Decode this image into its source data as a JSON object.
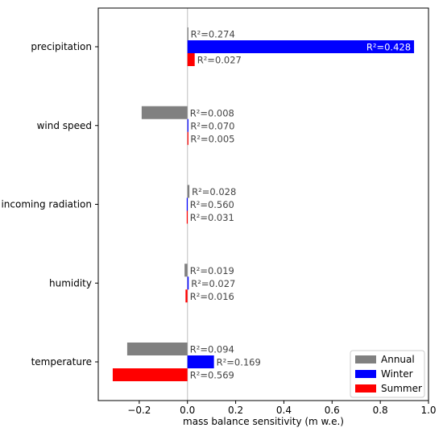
{
  "chart_data": {
    "type": "bar",
    "orientation": "horizontal",
    "categories": [
      "temperature",
      "humidity",
      "incoming radiation",
      "wind speed",
      "precipitation"
    ],
    "series": [
      {
        "name": "Annual",
        "color": "#808080",
        "values": [
          -0.25,
          -0.012,
          0.008,
          -0.19,
          0.003
        ],
        "r2": [
          "0.094",
          "0.019",
          "0.028",
          "0.008",
          "0.274"
        ]
      },
      {
        "name": "Winter",
        "color": "#0000ff",
        "values": [
          0.11,
          0.005,
          -0.003,
          0.002,
          0.94
        ],
        "r2": [
          "0.169",
          "0.027",
          "0.560",
          "0.070",
          "0.428"
        ]
      },
      {
        "name": "Summer",
        "color": "#ff0000",
        "values": [
          -0.31,
          -0.008,
          -0.003,
          0.002,
          0.03
        ],
        "r2": [
          "0.569",
          "0.016",
          "0.031",
          "0.005",
          "0.027"
        ]
      }
    ],
    "r2_label": "R²=",
    "xlabel": "mass balance sensitivity (m w.e.)",
    "xlim": [
      -0.37,
      1.0
    ],
    "xticks": [
      "-0.2",
      "0.0",
      "0.2",
      "0.4",
      "0.6",
      "0.8",
      "1.0"
    ],
    "zero_line": true,
    "legend_position": "lower right",
    "grid": false
  }
}
